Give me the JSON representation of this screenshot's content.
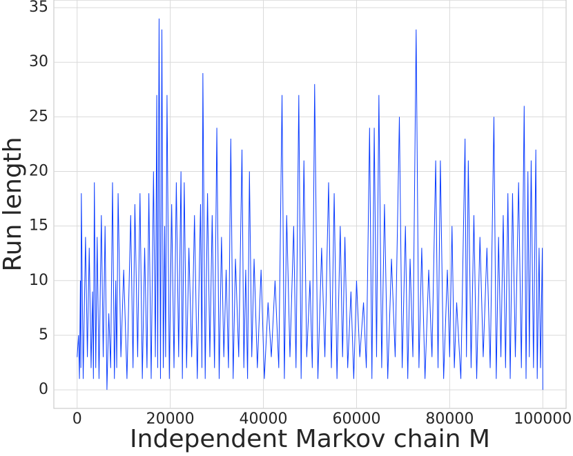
{
  "chart_data": {
    "type": "line",
    "x_label": "Independent Markov chain M",
    "y_label": "Run length",
    "xlim": [
      -5000,
      105000
    ],
    "ylim": [
      -1.7,
      35.7
    ],
    "xticks": [
      0,
      20000,
      40000,
      60000,
      80000,
      100000
    ],
    "yticks": [
      0,
      5,
      10,
      15,
      20,
      25,
      30,
      35
    ],
    "grid": true,
    "series": [
      {
        "color": "#0a3cff",
        "x": [
          0,
          300,
          500,
          700,
          800,
          900,
          1300,
          1800,
          2200,
          2600,
          3000,
          3300,
          3500,
          3700,
          4000,
          4300,
          4700,
          5200,
          5600,
          6000,
          6400,
          6800,
          7200,
          7600,
          8000,
          8300,
          8500,
          8800,
          9400,
          10000,
          10700,
          11500,
          12000,
          12400,
          13000,
          13500,
          14000,
          14500,
          15000,
          15400,
          15900,
          16400,
          16800,
          17100,
          17300,
          17600,
          17900,
          18200,
          18500,
          18800,
          19000,
          19300,
          19800,
          20300,
          20800,
          21300,
          21800,
          22300,
          22600,
          23000,
          23500,
          24000,
          24600,
          25200,
          25800,
          26500,
          26800,
          27000,
          27500,
          28000,
          28500,
          29000,
          29500,
          30000,
          30500,
          31000,
          31500,
          32000,
          32500,
          33000,
          33500,
          34000,
          34700,
          35400,
          35800,
          36200,
          36600,
          37000,
          37500,
          38000,
          38700,
          39500,
          40200,
          41000,
          41700,
          42500,
          43300,
          44000,
          44500,
          45000,
          45700,
          46500,
          47000,
          47600,
          48100,
          48700,
          49300,
          50000,
          50500,
          51000,
          51700,
          52500,
          53200,
          54000,
          54600,
          55200,
          55800,
          56500,
          57000,
          57500,
          58100,
          58800,
          59400,
          60000,
          60700,
          61500,
          62100,
          62800,
          63300,
          63800,
          64300,
          64800,
          65400,
          66000,
          66700,
          67500,
          68300,
          69200,
          69800,
          70500,
          71000,
          71500,
          72100,
          72800,
          73400,
          74000,
          74700,
          75500,
          76200,
          77000,
          77500,
          78000,
          78700,
          79500,
          80000,
          80500,
          81000,
          81500,
          82400,
          83300,
          83600,
          84000,
          84600,
          85200,
          85800,
          86500,
          87200,
          88000,
          88700,
          89500,
          90000,
          90500,
          91000,
          91500,
          92000,
          92500,
          93000,
          93500,
          94100,
          94800,
          95400,
          96000,
          96400,
          96800,
          97100,
          97500,
          98000,
          98500,
          98800,
          99200,
          99500,
          99900,
          100000
        ],
        "values": [
          3,
          5,
          1,
          10,
          2,
          18,
          1,
          14,
          3,
          13,
          2,
          9,
          1,
          19,
          2,
          14,
          1,
          16,
          3,
          15,
          0,
          7,
          2,
          19,
          1,
          10,
          2,
          18,
          3,
          11,
          1,
          16,
          2,
          17,
          3,
          18,
          1,
          13,
          2,
          18,
          1,
          20,
          3,
          27,
          2,
          34,
          1,
          33,
          2,
          15,
          3,
          27,
          1,
          17,
          2,
          19,
          3,
          20,
          1,
          19,
          2,
          13,
          3,
          16,
          1,
          17,
          2,
          29,
          1,
          18,
          3,
          16,
          2,
          24,
          1,
          14,
          3,
          11,
          2,
          23,
          1,
          12,
          3,
          22,
          2,
          11,
          1,
          20,
          3,
          12,
          2,
          11,
          1,
          8,
          3,
          10,
          2,
          27,
          1,
          16,
          3,
          15,
          2,
          27,
          1,
          21,
          3,
          10,
          2,
          28,
          1,
          13,
          3,
          19,
          2,
          18,
          1,
          15,
          3,
          14,
          2,
          9,
          1,
          10,
          3,
          8,
          2,
          24,
          1,
          24,
          3,
          27,
          2,
          17,
          1,
          12,
          3,
          25,
          2,
          15,
          1,
          12,
          3,
          33,
          2,
          13,
          1,
          11,
          3,
          21,
          2,
          21,
          1,
          11,
          3,
          15,
          2,
          8,
          1,
          23,
          3,
          21,
          2,
          16,
          1,
          14,
          3,
          13,
          2,
          25,
          1,
          14,
          3,
          16,
          2,
          18,
          1,
          18,
          3,
          19,
          2,
          26,
          1,
          20,
          3,
          21,
          2,
          22,
          1,
          13,
          2,
          13,
          0
        ]
      }
    ]
  }
}
